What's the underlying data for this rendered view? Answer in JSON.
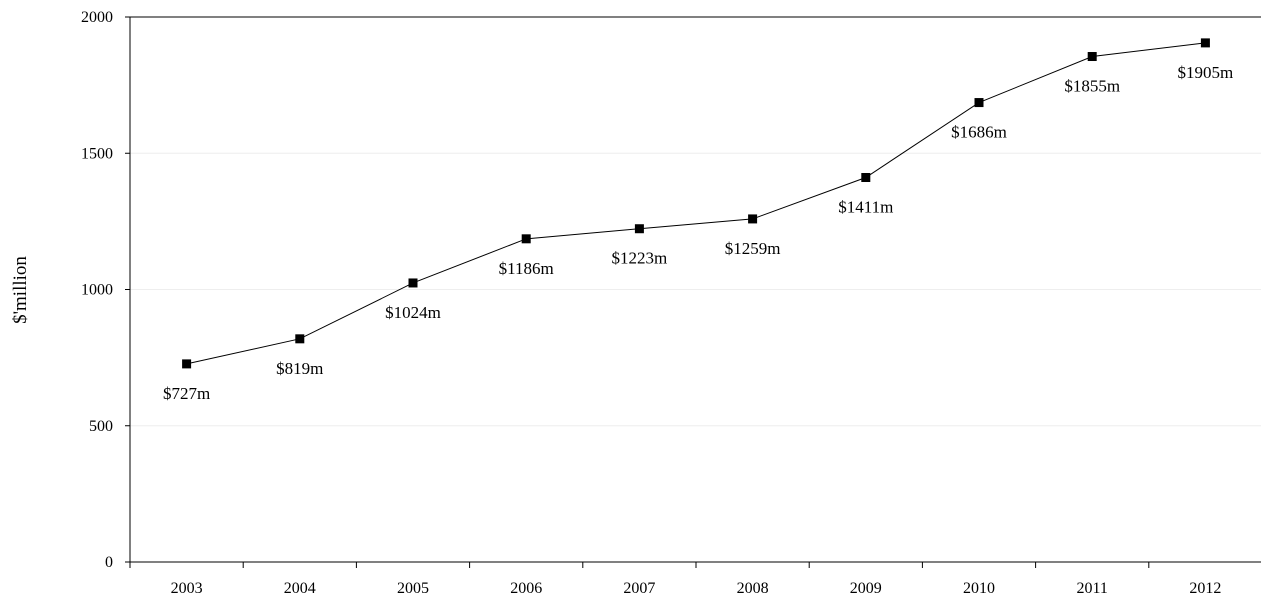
{
  "chart_data": {
    "type": "line",
    "title": "",
    "xlabel": "",
    "ylabel": "$'million",
    "categories": [
      "2003",
      "2004",
      "2005",
      "2006",
      "2007",
      "2008",
      "2009",
      "2010",
      "2011",
      "2012"
    ],
    "series": [
      {
        "values": [
          727,
          819,
          1024,
          1186,
          1223,
          1259,
          1411,
          1686,
          1855,
          1905
        ],
        "data_labels": [
          "$727m",
          "$819m",
          "$1024m",
          "$1186m",
          "$1223m",
          "$1259m",
          "$1411m",
          "$1686m",
          "$1855m",
          "$1905m"
        ],
        "color": "#000000",
        "marker": "square"
      }
    ],
    "ylim": [
      0,
      2000
    ],
    "yticks": [
      0,
      500,
      1000,
      1500,
      2000
    ],
    "ytick_labels": [
      "0",
      "500",
      "1000",
      "1500",
      "2000"
    ],
    "grid": "horizontal",
    "grid_color": "#eeeeee",
    "legend": "none"
  }
}
